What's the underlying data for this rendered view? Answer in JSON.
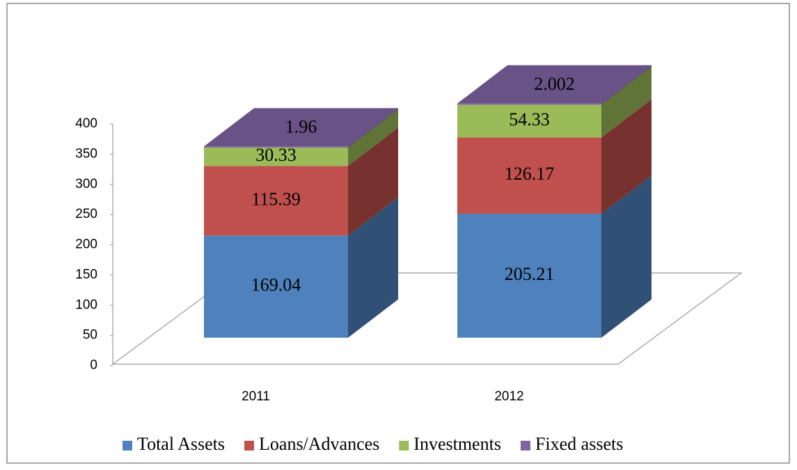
{
  "chart_data": {
    "type": "bar3d_stacked",
    "categories": [
      "2011",
      "2012"
    ],
    "series": [
      {
        "name": "Total Assets",
        "color": "#4f81bd",
        "values": [
          169.04,
          205.21
        ]
      },
      {
        "name": "Loans/Advances",
        "color": "#c0504d",
        "values": [
          115.39,
          126.17
        ]
      },
      {
        "name": "Investments",
        "color": "#9bbb59",
        "values": [
          30.33,
          54.33
        ]
      },
      {
        "name": "Fixed assets",
        "color": "#8064a2",
        "values": [
          1.96,
          2.002
        ]
      }
    ],
    "ylim": [
      0,
      400
    ],
    "yticks": [
      0,
      50,
      100,
      150,
      200,
      250,
      300,
      350,
      400
    ],
    "legend": "bottom"
  }
}
